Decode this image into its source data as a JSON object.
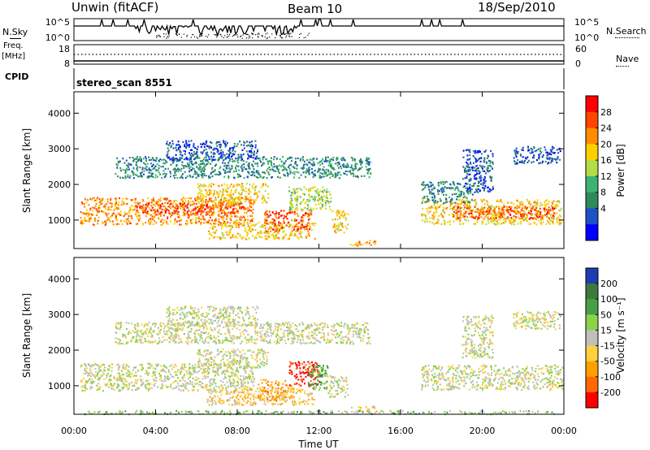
{
  "header": {
    "station": "Unwin (fitACF)",
    "beam": "Beam 10",
    "date": "18/Sep/2010"
  },
  "left_labels": {
    "nsky": "N.Sky",
    "freq": "Freq.",
    "mhz": "[MHz]",
    "cpid": "CPID"
  },
  "right_labels": {
    "nsearch": "N.Search",
    "nave": "Nave"
  },
  "cpid_value": "stereo_scan 8551",
  "chart_data": [
    {
      "type": "line",
      "panel": "noise",
      "y_left_ticks": [
        "10^5",
        "10^0"
      ],
      "y_right_ticks": [
        "10^5",
        "10^0"
      ],
      "series": [
        {
          "name": "N.Sky"
        },
        {
          "name": "N.Search"
        }
      ]
    },
    {
      "type": "line",
      "panel": "frequency",
      "y_left_ticks": [
        "18",
        "8"
      ],
      "y_right_ticks": [
        "60",
        "0"
      ],
      "series": [
        {
          "name": "Freq."
        },
        {
          "name": "Nave"
        }
      ]
    },
    {
      "type": "heatmap",
      "panel": "power",
      "ylabel": "Slant Range [km]",
      "y_ticks": [
        "4000",
        "3000",
        "2000",
        "1000"
      ],
      "ylim": [
        200,
        4600
      ],
      "xlim": [
        0,
        24
      ],
      "colorbar": {
        "label": "Power [dB]",
        "ticks": [
          "28",
          "24",
          "20",
          "16",
          "12",
          "8",
          "4"
        ],
        "colors": [
          "#ff0000",
          "#ff4500",
          "#ff8c00",
          "#ffd000",
          "#b4dc46",
          "#3cb371",
          "#2e8b57",
          "#1e50c8",
          "#0000ff"
        ]
      },
      "regions": [
        {
          "t": [
            0.3,
            8.8
          ],
          "r": [
            880,
            1650
          ],
          "level": 2
        },
        {
          "t": [
            3.0,
            8.3
          ],
          "r": [
            1200,
            1500
          ],
          "level": 1
        },
        {
          "t": [
            6.0,
            9.5
          ],
          "r": [
            1500,
            2050
          ],
          "level": 3
        },
        {
          "t": [
            2.0,
            14.5
          ],
          "r": [
            2200,
            2800
          ],
          "level": 6
        },
        {
          "t": [
            4.5,
            9.0
          ],
          "r": [
            2700,
            3250
          ],
          "level": 7
        },
        {
          "t": [
            6.5,
            11.8
          ],
          "r": [
            480,
            950
          ],
          "level": 3
        },
        {
          "t": [
            9.3,
            11.6
          ],
          "r": [
            700,
            1300
          ],
          "level": 1
        },
        {
          "t": [
            10.5,
            12.6
          ],
          "r": [
            1300,
            1950
          ],
          "level": 4
        },
        {
          "t": [
            12.6,
            13.4
          ],
          "r": [
            650,
            1300
          ],
          "level": 3
        },
        {
          "t": [
            13.5,
            14.8
          ],
          "r": [
            300,
            450
          ],
          "level": 2
        },
        {
          "t": [
            17.0,
            23.9
          ],
          "r": [
            900,
            1600
          ],
          "level": 3
        },
        {
          "t": [
            18.5,
            23.5
          ],
          "r": [
            1050,
            1400
          ],
          "level": 1
        },
        {
          "t": [
            17.0,
            19.5
          ],
          "r": [
            1500,
            2100
          ],
          "level": 6
        },
        {
          "t": [
            19.0,
            20.5
          ],
          "r": [
            1800,
            3000
          ],
          "level": 7
        },
        {
          "t": [
            21.5,
            23.8
          ],
          "r": [
            2600,
            3100
          ],
          "level": 7
        }
      ]
    },
    {
      "type": "heatmap",
      "panel": "velocity",
      "ylabel": "Slant Range [km]",
      "xlabel": "Time UT",
      "y_ticks": [
        "4000",
        "3000",
        "2000",
        "1000"
      ],
      "x_ticks": [
        "00:00",
        "04:00",
        "08:00",
        "12:00",
        "16:00",
        "20:00",
        "00:00"
      ],
      "ylim": [
        200,
        4600
      ],
      "xlim": [
        0,
        24
      ],
      "colorbar": {
        "label": "Velocity [m s⁻¹]",
        "ticks": [
          "200",
          "100",
          "50",
          "15",
          "-15",
          "-50",
          "-100",
          "-200"
        ],
        "colors": [
          "#1e3cb4",
          "#3c7a3c",
          "#46a046",
          "#8cd24b",
          "#c0c0b8",
          "#ffd040",
          "#ffa000",
          "#ff6a00",
          "#ff0000"
        ]
      },
      "regions": [
        {
          "t": [
            0.3,
            8.8
          ],
          "r": [
            880,
            1650
          ],
          "level": 4
        },
        {
          "t": [
            6.0,
            9.5
          ],
          "r": [
            1500,
            2050
          ],
          "level": 4
        },
        {
          "t": [
            2.0,
            14.5
          ],
          "r": [
            2200,
            2800
          ],
          "level": 4
        },
        {
          "t": [
            4.5,
            9.0
          ],
          "r": [
            2700,
            3250
          ],
          "level": 4
        },
        {
          "t": [
            6.5,
            11.8
          ],
          "r": [
            480,
            950
          ],
          "level": 5
        },
        {
          "t": [
            9.0,
            10.5
          ],
          "r": [
            600,
            1200
          ],
          "level": 6
        },
        {
          "t": [
            10.5,
            12.0
          ],
          "r": [
            1000,
            1700
          ],
          "level": 8
        },
        {
          "t": [
            11.4,
            12.4
          ],
          "r": [
            900,
            1600
          ],
          "level": 2
        },
        {
          "t": [
            12.4,
            13.4
          ],
          "r": [
            700,
            1300
          ],
          "level": 4
        },
        {
          "t": [
            13.5,
            14.8
          ],
          "r": [
            300,
            450
          ],
          "level": 5
        },
        {
          "t": [
            17.0,
            23.9
          ],
          "r": [
            900,
            1600
          ],
          "level": 4
        },
        {
          "t": [
            19.0,
            20.5
          ],
          "r": [
            1800,
            3000
          ],
          "level": 4
        },
        {
          "t": [
            21.5,
            23.8
          ],
          "r": [
            2600,
            3100
          ],
          "level": 4
        },
        {
          "t": [
            0.5,
            23.5
          ],
          "r": [
            220,
            320
          ],
          "level": 3
        }
      ]
    }
  ]
}
